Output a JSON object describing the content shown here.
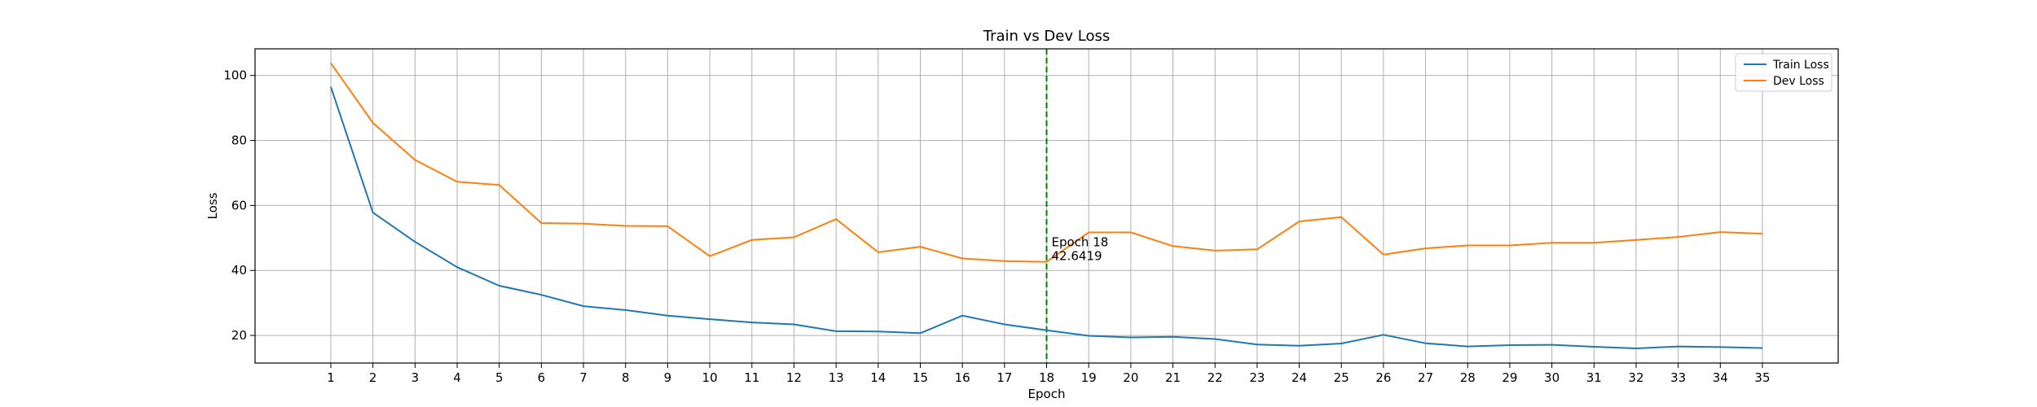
{
  "chart_data": {
    "type": "line",
    "title": "Train vs Dev Loss",
    "xlabel": "Epoch",
    "ylabel": "Loss",
    "x": [
      1,
      2,
      3,
      4,
      5,
      6,
      7,
      8,
      9,
      10,
      11,
      12,
      13,
      14,
      15,
      16,
      17,
      18,
      19,
      20,
      21,
      22,
      23,
      24,
      25,
      26,
      27,
      28,
      29,
      30,
      31,
      32,
      33,
      34,
      35
    ],
    "xlim": [
      -0.8,
      36.8
    ],
    "ylim": [
      11.5,
      108.2
    ],
    "yticks": [
      20,
      40,
      60,
      80,
      100
    ],
    "grid": true,
    "legend_position": "top-right",
    "series": [
      {
        "name": "Train Loss",
        "color": "#1f77b4",
        "values": [
          96.5,
          57.8,
          48.8,
          41.0,
          35.3,
          32.5,
          29.0,
          27.8,
          26.1,
          25.0,
          24.0,
          23.4,
          21.3,
          21.2,
          20.7,
          26.1,
          23.4,
          21.6,
          19.9,
          19.4,
          19.6,
          18.9,
          17.2,
          16.8,
          17.5,
          20.2,
          17.6,
          16.6,
          17.0,
          17.1,
          16.5,
          16.0,
          16.6,
          16.4,
          16.1
        ]
      },
      {
        "name": "Dev Loss",
        "color": "#ff7f0e",
        "values": [
          103.8,
          85.4,
          74.0,
          67.3,
          66.3,
          54.6,
          54.4,
          53.7,
          53.6,
          44.4,
          49.4,
          50.2,
          55.8,
          45.6,
          47.3,
          43.7,
          42.9,
          42.6419,
          51.7,
          51.7,
          47.5,
          46.1,
          46.5,
          55.1,
          56.4,
          44.9,
          46.8,
          47.7,
          47.7,
          48.5,
          48.5,
          49.4,
          50.3,
          51.8,
          51.3
        ]
      }
    ],
    "marker_line": {
      "x": 18,
      "color": "#008000",
      "style": "dashed"
    },
    "annotation": {
      "x": 18,
      "y": 42.6419,
      "line1": "Epoch 18",
      "line2": "42.6419"
    }
  }
}
